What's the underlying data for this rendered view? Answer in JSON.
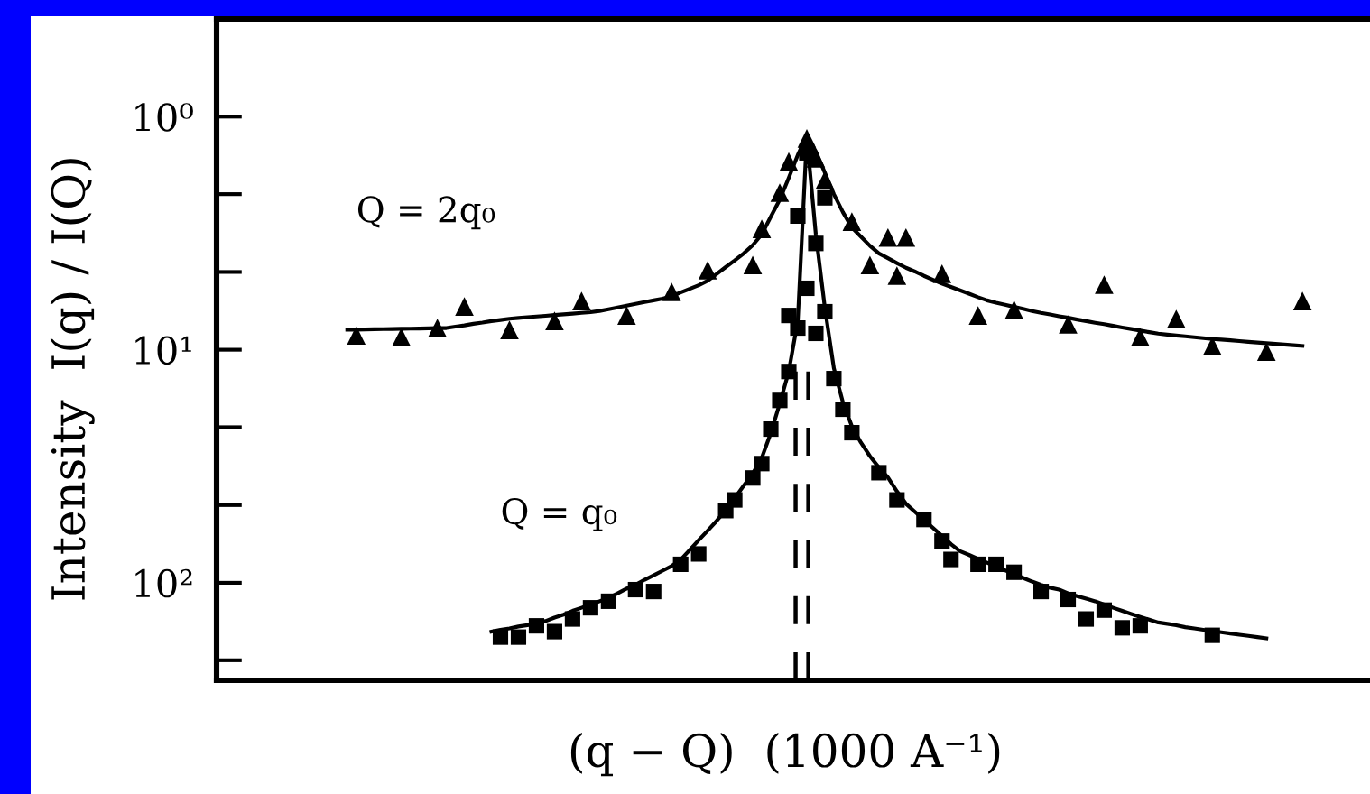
{
  "chart_data": {
    "type": "scatter",
    "xlabel": "(q − Q)  (1000 A⁻¹)",
    "ylabel": "Intensity  I(q) / I(Q)",
    "log": "y",
    "tick_labels": "y",
    "categories": [
      null,
      null,
      null,
      null,
      null,
      null,
      null,
      null,
      null,
      null,
      null,
      null,
      null,
      null,
      null,
      null,
      null,
      null,
      null,
      null,
      null,
      null,
      null,
      null,
      null,
      null,
      null,
      null,
      null,
      null,
      null,
      null,
      null,
      null,
      null,
      null,
      null,
      null,
      null,
      null,
      null,
      null,
      null,
      null,
      null,
      null,
      null,
      null,
      null,
      null,
      null,
      null,
      null,
      null,
      null,
      null,
      null,
      null,
      null,
      null,
      null,
      null,
      null,
      null,
      null,
      null,
      null,
      null,
      null,
      null,
      null,
      null,
      null,
      null,
      null,
      null,
      null,
      null,
      null,
      null,
      null,
      null,
      null,
      null,
      null,
      null,
      null,
      null,
      null,
      null,
      null,
      null,
      null,
      null,
      null,
      null,
      null,
      null,
      null,
      null,
      null,
      null,
      null,
      null,
      null,
      null,
      null,
      null,
      null,
      null,
      null,
      null,
      null,
      null,
      null,
      null,
      null,
      null,
      null,
      null,
      null,
      null,
      null,
      null,
      null,
      null,
      null,
      null
    ],
    "ylim": [
      262,
      0.381
    ],
    "yticks": [
      {
        "value": 1,
        "label": "10⁰"
      },
      {
        "value": 2.15,
        "label": null
      },
      {
        "value": 4.64,
        "label": null
      },
      {
        "value": 10,
        "label": "10¹"
      },
      {
        "value": 21.5,
        "label": null
      },
      {
        "value": 46.4,
        "label": null
      },
      {
        "value": 100,
        "label": "10²"
      },
      {
        "value": 215,
        "label": null
      }
    ],
    "series": [
      {
        "name": "Q = 2q₀",
        "marker": "triangle",
        "color": "#000000",
        "values": [
          null,
          null,
          null,
          null,
          null,
          null,
          null,
          null,
          null,
          null,
          null,
          null,
          null,
          null,
          null,
          8.67,
          null,
          null,
          null,
          null,
          8.82,
          null,
          null,
          null,
          8.07,
          null,
          null,
          6.52,
          null,
          null,
          null,
          null,
          8.22,
          null,
          null,
          null,
          null,
          7.52,
          null,
          null,
          6.18,
          null,
          null,
          null,
          null,
          7.13,
          null,
          null,
          null,
          null,
          5.65,
          null,
          null,
          null,
          4.56,
          null,
          null,
          null,
          null,
          4.33,
          3.03,
          null,
          2.12,
          1.56,
          null,
          1.24,
          1.51,
          1.87,
          null,
          null,
          2.82,
          null,
          4.33,
          null,
          3.3,
          4.81,
          3.3,
          null,
          null,
          null,
          4.72,
          null,
          null,
          null,
          7.13,
          null,
          null,
          null,
          6.74,
          null,
          null,
          null,
          null,
          null,
          7.78,
          null,
          null,
          null,
          5.26,
          null,
          null,
          null,
          8.82,
          null,
          null,
          null,
          7.38,
          null,
          null,
          null,
          9.64,
          null,
          null,
          null,
          null,
          null,
          10.2,
          null,
          null,
          null,
          6.18,
          null,
          null,
          null,
          null,
          null,
          null,
          null
        ]
      },
      {
        "type": "line",
        "color": "#000000",
        "values": [
          null,
          null,
          null,
          null,
          null,
          null,
          null,
          null,
          null,
          null,
          null,
          null,
          null,
          null,
          8.21,
          8.2,
          8.19,
          8.17,
          8.16,
          8.15,
          8.13,
          8.12,
          8.11,
          8.09,
          8.08,
          8.07,
          7.96,
          7.86,
          7.74,
          7.65,
          7.54,
          7.45,
          7.36,
          7.31,
          7.25,
          7.2,
          7.15,
          7.1,
          7.05,
          7.0,
          6.95,
          6.9,
          6.82,
          6.7,
          6.59,
          6.47,
          6.36,
          6.24,
          6.14,
          6.04,
          5.89,
          5.68,
          5.48,
          5.29,
          5.06,
          4.73,
          4.42,
          4.14,
          3.86,
          3.56,
          3.2,
          2.69,
          2.27,
          1.83,
          1.46,
          1.21,
          1.41,
          1.74,
          2.15,
          2.57,
          2.99,
          3.27,
          3.58,
          3.86,
          4.05,
          4.25,
          4.45,
          4.62,
          4.82,
          5.01,
          5.2,
          5.38,
          5.56,
          5.75,
          5.95,
          6.14,
          6.29,
          6.41,
          6.55,
          6.68,
          6.82,
          6.95,
          7.06,
          7.18,
          7.29,
          7.42,
          7.54,
          7.66,
          7.77,
          7.9,
          8.03,
          8.15,
          8.28,
          8.41,
          8.53,
          8.61,
          8.69,
          8.76,
          8.84,
          8.92,
          9.0,
          9.05,
          9.11,
          9.18,
          9.25,
          9.31,
          9.38,
          9.44,
          9.5,
          9.56,
          9.63,
          null,
          null,
          null,
          null,
          null,
          null,
          null
        ]
      },
      {
        "name": "Q = q₀",
        "marker": "square",
        "color": "#000000",
        "values": [
          null,
          null,
          null,
          null,
          null,
          null,
          null,
          null,
          null,
          null,
          null,
          null,
          null,
          null,
          null,
          null,
          null,
          null,
          null,
          null,
          null,
          null,
          null,
          null,
          null,
          null,
          null,
          null,
          null,
          null,
          null,
          171,
          null,
          171,
          null,
          153,
          null,
          162,
          null,
          143,
          null,
          128,
          null,
          120,
          null,
          null,
          107,
          null,
          109,
          null,
          null,
          83.3,
          null,
          75.2,
          null,
          null,
          49.0,
          44.1,
          null,
          35.5,
          30.8,
          21.9,
          16.5,
          12.4,
          8.07,
          1.43,
          3.5,
          6.87,
          13.3,
          18.0,
          22.7,
          null,
          null,
          33.7,
          null,
          44.1,
          null,
          null,
          53.5,
          null,
          66.2,
          79.4,
          null,
          null,
          83.3,
          null,
          83.3,
          null,
          90.1,
          null,
          null,
          109,
          null,
          null,
          118,
          null,
          143,
          null,
          131,
          null,
          156,
          null,
          153,
          null,
          null,
          null,
          null,
          null,
          null,
          null,
          168,
          null,
          null,
          null,
          null,
          null,
          null,
          null,
          null,
          null,
          null,
          null,
          null,
          null,
          null,
          null,
          null,
          null
        ]
      },
      {
        "marker": "square",
        "color": "#000000",
        "values": [
          null,
          null,
          null,
          null,
          null,
          null,
          null,
          null,
          null,
          null,
          null,
          null,
          null,
          null,
          null,
          null,
          null,
          null,
          null,
          null,
          null,
          null,
          null,
          null,
          null,
          null,
          null,
          null,
          null,
          null,
          null,
          null,
          null,
          null,
          null,
          null,
          null,
          null,
          null,
          null,
          null,
          null,
          null,
          null,
          null,
          null,
          null,
          null,
          null,
          null,
          null,
          null,
          null,
          null,
          null,
          null,
          null,
          null,
          null,
          null,
          null,
          null,
          null,
          7.13,
          2.67,
          5.45,
          8.51,
          2.23,
          null,
          null,
          null,
          null,
          null,
          null,
          null,
          null,
          null,
          null,
          null,
          null,
          null,
          null,
          null,
          null,
          null,
          null,
          null,
          null,
          null,
          null,
          null,
          null,
          null,
          null,
          null,
          null,
          null,
          null,
          null,
          null,
          null,
          null,
          null,
          null,
          null,
          null,
          null,
          null,
          null,
          null,
          null,
          null,
          null,
          null,
          null,
          null,
          null,
          null,
          null,
          null,
          null,
          null,
          null,
          null,
          null,
          null,
          null,
          null
        ]
      },
      {
        "type": "line",
        "color": "#000000",
        "values": [
          null,
          null,
          null,
          null,
          null,
          null,
          null,
          null,
          null,
          null,
          null,
          null,
          null,
          null,
          null,
          null,
          null,
          null,
          null,
          null,
          null,
          null,
          null,
          null,
          null,
          null,
          null,
          null,
          null,
          null,
          162,
          159,
          157,
          154,
          152,
          149,
          146,
          141,
          137,
          132,
          128,
          124,
          120,
          116,
          111,
          106,
          102,
          97.0,
          92.8,
          88.7,
          84.7,
          79.6,
          72.3,
          65.6,
          59.7,
          54.2,
          48.8,
          43.3,
          38.3,
          34.0,
          29.1,
          22.8,
          17.0,
          12.4,
          7.5,
          1.22,
          3.2,
          6.6,
          12.0,
          16.8,
          21.3,
          25.0,
          28.6,
          32.0,
          35.3,
          40.5,
          45.8,
          49.6,
          53.7,
          58.1,
          63.0,
          68.3,
          73.2,
          75.9,
          79.0,
          82.0,
          85.1,
          88.4,
          91.8,
          95.3,
          98.8,
          102,
          105,
          107,
          111,
          114,
          117,
          120,
          124,
          128,
          132,
          136,
          140,
          144,
          148,
          150,
          152,
          155,
          157,
          159,
          161,
          163,
          165,
          167,
          169,
          171,
          173,
          null,
          null,
          null,
          null,
          null,
          null,
          null,
          null,
          null,
          null,
          null
        ]
      }
    ]
  }
}
